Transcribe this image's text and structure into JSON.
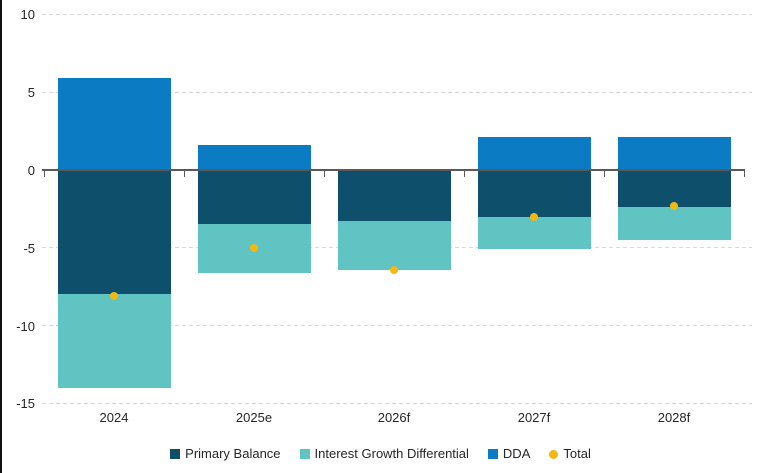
{
  "chart_data": {
    "type": "bar",
    "subtype": "stacked-bars-with-total-point-overlay",
    "title": "",
    "xlabel": "",
    "ylabel": "",
    "categories": [
      "2024",
      "2025e",
      "2026f",
      "2027f",
      "2028f"
    ],
    "series": [
      {
        "name": "Primary Balance",
        "color": "#0e506b",
        "values": [
          -8.0,
          -3.5,
          -3.3,
          -3.0,
          -2.4
        ]
      },
      {
        "name": "Interest Growth Differential",
        "color": "#5fc4c2",
        "values": [
          -6.0,
          -3.1,
          -3.1,
          -2.1,
          -2.1
        ]
      },
      {
        "name": "DDA",
        "color": "#0b7cc4",
        "values": [
          5.9,
          1.6,
          0.0,
          2.1,
          2.1
        ]
      }
    ],
    "point_series": {
      "name": "Total",
      "color": "#f5b80e",
      "values": [
        -8.1,
        -5.0,
        -6.4,
        -3.0,
        -2.3
      ]
    },
    "ylim": [
      -15,
      10
    ],
    "yticks": [
      10,
      5,
      0,
      -5,
      -10,
      -15
    ],
    "grid": "horizontal-dashed",
    "grid_color": "#d9d9d9",
    "axis_color": "#595959",
    "label_color": "#262626",
    "legend_position": "bottom",
    "legend_entries": [
      "Primary Balance",
      "Interest Growth Differential",
      "DDA",
      "Total"
    ]
  }
}
